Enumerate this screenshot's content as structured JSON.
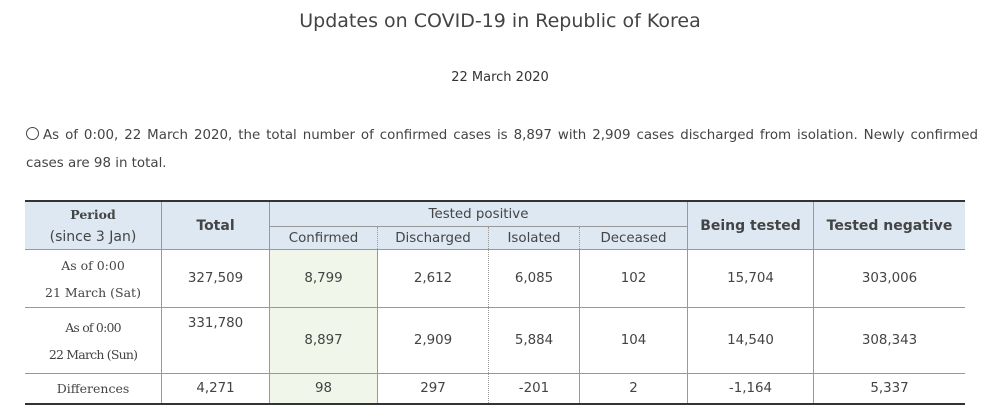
{
  "title": "Updates on COVID-19 in Republic of Korea",
  "date": "22 March 2020",
  "notice": "As of 0:00, 22 March 2020, the total number of confirmed cases is 8,897 with 2,909 cases discharged from isolation. Newly confirmed cases are 98 in total.",
  "table": {
    "header": {
      "period": [
        "Period",
        "(since 3 Jan)"
      ],
      "total": "Total",
      "tested_positive": "Tested positive",
      "sub": [
        "Confirmed",
        "Discharged",
        "Isolated",
        "Deceased"
      ],
      "being_tested": "Being tested",
      "tested_negative": "Tested negative"
    },
    "rows": [
      {
        "period": [
          "As of 0:00",
          "21 March (Sat)"
        ],
        "cells": [
          "327,509",
          "8,799",
          "2,612",
          "6,085",
          "102",
          "15,704",
          "303,006"
        ]
      },
      {
        "period": [
          "As of 0:00",
          "22 March (Sun)"
        ],
        "cells": [
          "331,780",
          "8,897",
          "2,909",
          "5,884",
          "104",
          "14,540",
          "308,343"
        ]
      },
      {
        "period": [
          "Differences"
        ],
        "cells": [
          "4,271",
          "98",
          "297",
          "-201",
          "2",
          "-1,164",
          "5,337"
        ]
      }
    ]
  }
}
